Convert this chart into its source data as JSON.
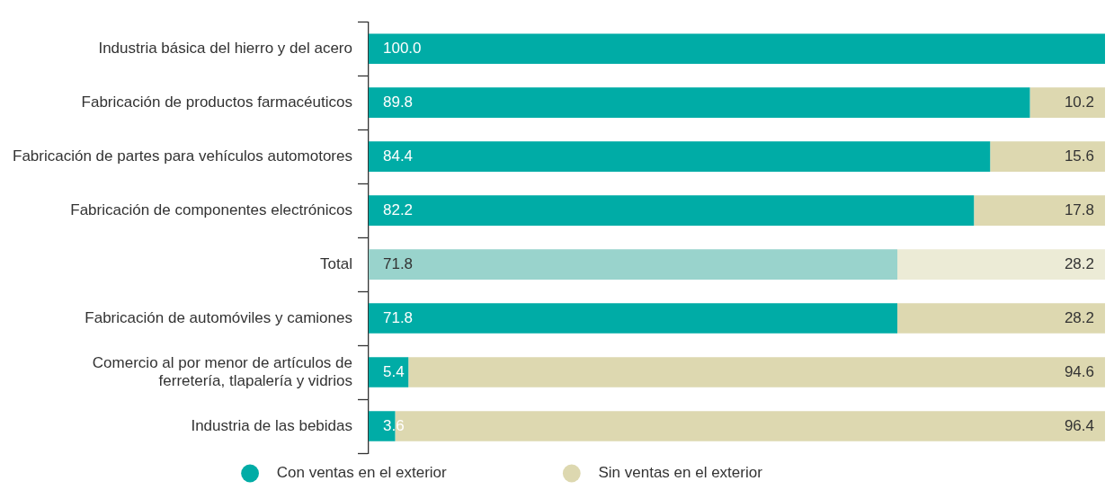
{
  "chart_data": {
    "type": "bar",
    "orientation": "horizontal",
    "stacked": true,
    "categories": [
      "Industria básica del hierro y del acero",
      "Fabricación de productos farmacéuticos",
      "Fabricación de partes para vehículos automotores",
      "Fabricación de componentes electrónicos",
      "Total",
      "Fabricación de automóviles y camiones",
      "Comercio al por menor de artículos de ferretería, tlapalería y vidrios",
      "Industria de las bebidas"
    ],
    "series": [
      {
        "name": "Con ventas en el exterior",
        "color": "#00aca6",
        "colors": [
          "#00aca6",
          "#00aca6",
          "#00aca6",
          "#00aca6",
          "#99d3cc",
          "#00aca6",
          "#00aca6",
          "#00aca6"
        ],
        "values": [
          100.0,
          89.8,
          84.4,
          82.2,
          71.8,
          71.8,
          5.4,
          3.6
        ],
        "value_labels": [
          "100.0",
          "89.8",
          "84.4",
          "82.2",
          "71.8",
          "71.8",
          "5.4",
          "3.6"
        ]
      },
      {
        "name": "Sin ventas en el exterior",
        "color": "#ddd8b0",
        "colors": [
          "#ddd8b0",
          "#ddd8b0",
          "#ddd8b0",
          "#ddd8b0",
          "#ecebd6",
          "#ddd8b0",
          "#ddd8b0",
          "#ddd8b0"
        ],
        "values": [
          0,
          10.2,
          15.6,
          17.8,
          28.2,
          28.2,
          94.6,
          96.4
        ],
        "value_labels": [
          null,
          "10.2",
          "15.6",
          "17.8",
          "28.2",
          "28.2",
          "94.6",
          "96.4"
        ]
      }
    ],
    "xlim": [
      0,
      100
    ],
    "tick_labels": "y",
    "grid": false,
    "legend": "bottom"
  }
}
